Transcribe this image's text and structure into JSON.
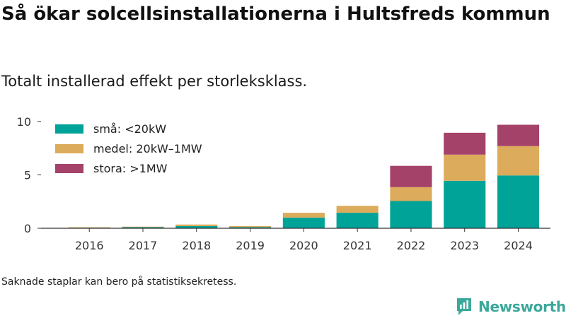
{
  "title": "Så ökar solcellsinstallationerna i Hultsfreds kommun",
  "subtitle": "Totalt installerad effekt per storleksklass.",
  "footnote": "Saknade staplar kan bero på statistiksekretess.",
  "brand": {
    "name": "Newsworthy",
    "icon": "newsworthy-logo-icon",
    "color": "#3aa89a"
  },
  "chart_data": {
    "type": "bar",
    "stacked": true,
    "categories": [
      "2016",
      "2017",
      "2018",
      "2019",
      "2020",
      "2021",
      "2022",
      "2023",
      "2024"
    ],
    "series": [
      {
        "name": "små: <20kW",
        "color": "#00a398",
        "values": [
          0.05,
          0.1,
          0.2,
          0.1,
          1.0,
          1.45,
          2.55,
          4.45,
          4.95
        ]
      },
      {
        "name": "medel: 20kW–1MW",
        "color": "#dcab5b",
        "values": [
          0.05,
          0.05,
          0.15,
          0.1,
          0.45,
          0.65,
          1.3,
          2.45,
          2.75
        ]
      },
      {
        "name": "stora: >1MW",
        "color": "#a5426a",
        "values": [
          0,
          0,
          0,
          0,
          0,
          0,
          2.0,
          2.05,
          2.0
        ]
      }
    ],
    "yticks": [
      0,
      5,
      10
    ],
    "ylim": [
      0,
      10.5
    ],
    "grid": false,
    "legend_position": "top-left"
  }
}
